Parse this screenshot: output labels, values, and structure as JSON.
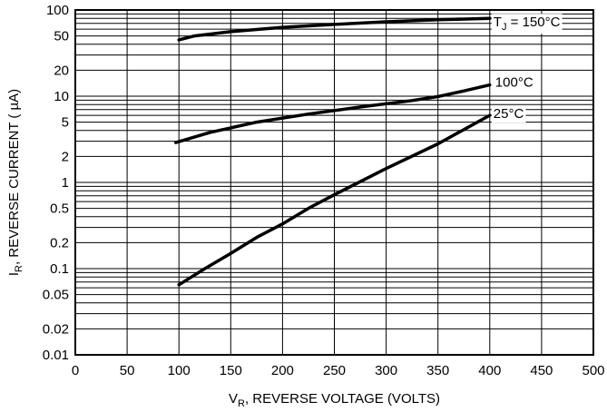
{
  "chart_data": {
    "type": "line",
    "title": "",
    "xlabel": {
      "main": "V",
      "sub": "R",
      "rest": ", REVERSE VOLTAGE (VOLTS)"
    },
    "ylabel": {
      "main": "I",
      "sub": "R",
      "rest": ", REVERSE CURRENT ( µA)"
    },
    "xlim": [
      0,
      500
    ],
    "ylim": [
      0.01,
      100
    ],
    "yscale": "log",
    "grid": true,
    "x_ticks": [
      0,
      50,
      100,
      150,
      200,
      250,
      300,
      350,
      400,
      450,
      500
    ],
    "y_major_ticks": [
      0.01,
      0.02,
      0.05,
      0.1,
      0.2,
      0.5,
      1,
      2,
      5,
      10,
      20,
      50,
      100
    ],
    "y_tick_labels": [
      "0.01",
      "0.02",
      "0.05",
      "0.1",
      "0.2",
      "0.5",
      "1",
      "2",
      "5",
      "10",
      "20",
      "50",
      "100"
    ],
    "y_minor_gridlines": [
      0.03,
      0.04,
      0.06,
      0.07,
      0.08,
      0.09,
      0.3,
      0.4,
      0.6,
      0.7,
      0.8,
      0.9,
      3,
      4,
      6,
      7,
      8,
      9,
      30,
      40,
      60,
      70,
      80,
      90
    ],
    "series": [
      {
        "name": "T_J = 150°C",
        "label_main": "T",
        "label_sub": "J",
        "label_rest": " = 150°C",
        "x": [
          100,
          115,
          150,
          200,
          250,
          300,
          350,
          400
        ],
        "y": [
          45,
          50,
          56,
          63,
          68,
          73,
          77,
          80
        ]
      },
      {
        "name": "100°C",
        "label_main": "100°C",
        "label_sub": "",
        "label_rest": "",
        "x": [
          97,
          130,
          175,
          225,
          275,
          325,
          350,
          375,
          400
        ],
        "y": [
          2.9,
          3.8,
          5.0,
          6.2,
          7.5,
          8.9,
          9.9,
          11.5,
          13.5
        ]
      },
      {
        "name": "25°C",
        "label_main": "25°C",
        "label_sub": "",
        "label_rest": "",
        "x": [
          100,
          125,
          150,
          175,
          200,
          225,
          250,
          300,
          350,
          400
        ],
        "y": [
          0.065,
          0.1,
          0.15,
          0.23,
          0.33,
          0.5,
          0.72,
          1.45,
          2.8,
          6.0
        ]
      }
    ]
  }
}
